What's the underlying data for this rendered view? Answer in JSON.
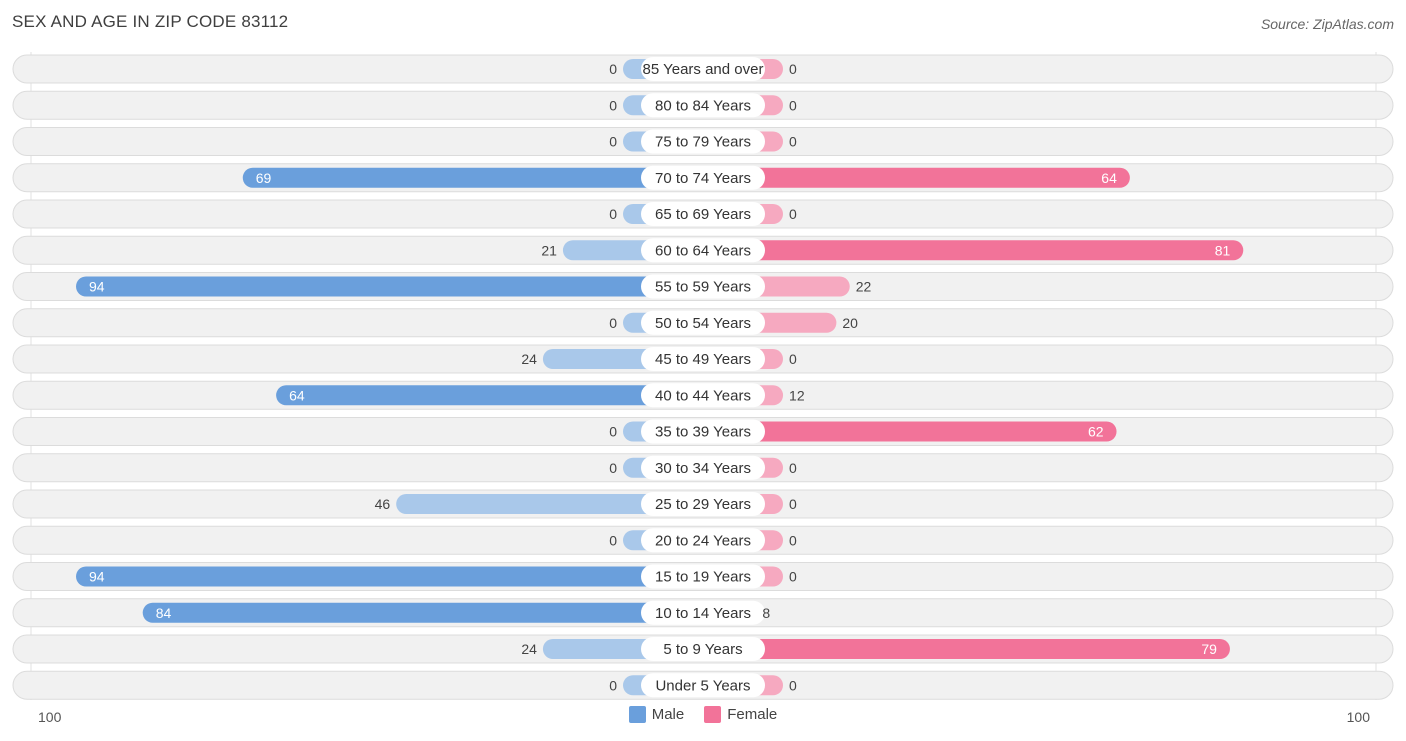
{
  "title": "SEX AND AGE IN ZIP CODE 83112",
  "source": "Source: ZipAtlas.com",
  "colors": {
    "male_strong": "#6a9fdc",
    "male_light": "#a9c8ea",
    "female_strong": "#f27399",
    "female_light": "#f6a9c0",
    "row_bg": "#f1f1f1",
    "row_border": "#dcdcdc"
  },
  "legend": {
    "male": "Male",
    "female": "Female"
  },
  "axis": {
    "left_label": "100",
    "right_label": "100"
  },
  "chart_data": {
    "type": "bar",
    "orientation": "horizontal-diverging",
    "title": "SEX AND AGE IN ZIP CODE 83112",
    "xlim": [
      0,
      100
    ],
    "categories": [
      "85 Years and over",
      "80 to 84 Years",
      "75 to 79 Years",
      "70 to 74 Years",
      "65 to 69 Years",
      "60 to 64 Years",
      "55 to 59 Years",
      "50 to 54 Years",
      "45 to 49 Years",
      "40 to 44 Years",
      "35 to 39 Years",
      "30 to 34 Years",
      "25 to 29 Years",
      "20 to 24 Years",
      "15 to 19 Years",
      "10 to 14 Years",
      "5 to 9 Years",
      "Under 5 Years"
    ],
    "series": [
      {
        "name": "Male",
        "values": [
          0,
          0,
          0,
          69,
          0,
          21,
          94,
          0,
          24,
          64,
          0,
          0,
          46,
          0,
          94,
          84,
          24,
          0
        ]
      },
      {
        "name": "Female",
        "values": [
          0,
          0,
          0,
          64,
          0,
          81,
          22,
          20,
          0,
          12,
          62,
          0,
          0,
          0,
          0,
          8,
          79,
          0
        ]
      }
    ],
    "legend": "bottom-center",
    "grid": false
  }
}
